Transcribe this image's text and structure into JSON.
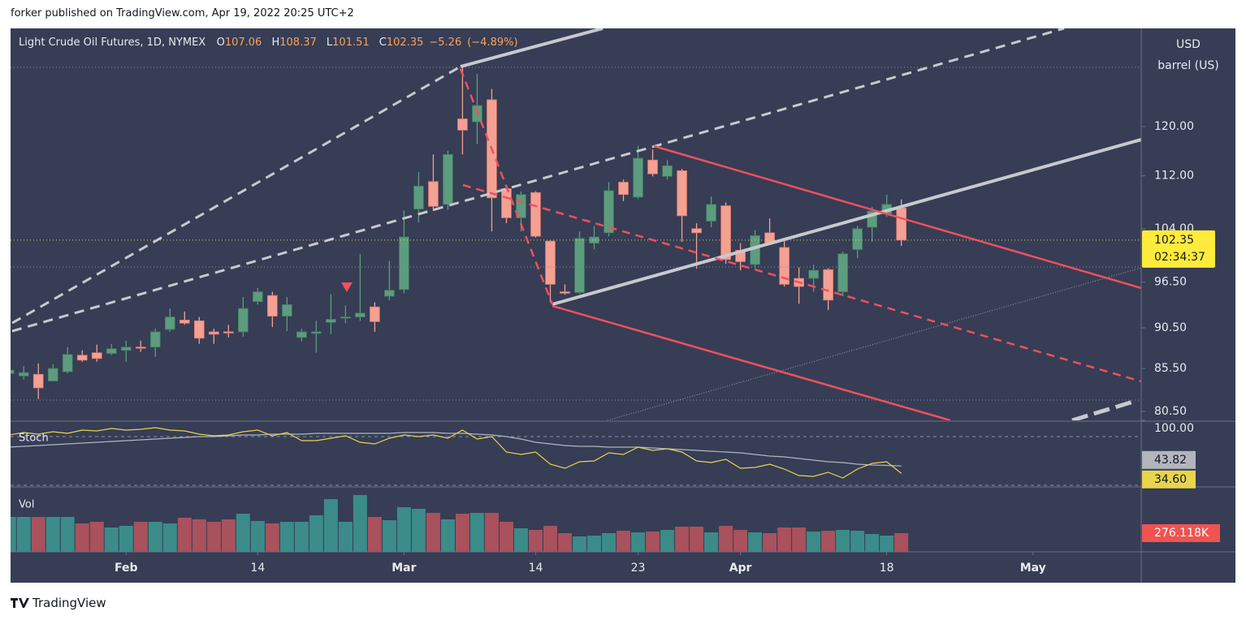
{
  "header": {
    "byline": "forker published on TradingView.com, Apr 19, 2022 20:25 UTC+2",
    "brand": "TradingView"
  },
  "chart_data": {
    "type": "candlestick",
    "title": "Light Crude Oil Futures, 1D, NYMEX",
    "legend_keys": [
      "O",
      "H",
      "L",
      "C"
    ],
    "change": {
      "value": -5.26,
      "label": "−5.26"
    },
    "change_pct": {
      "value": -4.89,
      "label": "(−4.89%)"
    },
    "currency": "USD",
    "unit": "barrel (US)",
    "countdown": "02:34:37",
    "log_scale": true,
    "up_color": "#5d9c7e",
    "down_color": "#f4a092",
    "open": [
      84.9,
      84.6,
      84.8,
      84.0,
      85.1,
      87.1,
      87.4,
      87.3,
      87.7,
      88.1,
      88.1,
      90.3,
      91.5,
      91.4,
      90.0,
      90.0,
      90.0,
      93.9,
      94.7,
      92.0,
      89.3,
      89.8,
      91.2,
      91.8,
      91.9,
      93.2,
      94.6,
      95.5,
      106.9,
      111.1,
      107.6,
      121.3,
      120.8,
      124.6,
      110.0,
      105.6,
      109.4,
      102.2,
      95.2,
      95.1,
      101.9,
      103.4,
      111.0,
      108.7,
      114.5,
      111.9,
      112.8,
      104.0,
      105.1,
      107.4,
      100.9,
      98.9,
      103.4,
      101.3,
      97.0,
      97.0,
      98.2,
      95.2,
      101.0,
      104.2,
      106.2,
      107.06
    ],
    "high": [
      85.6,
      85.8,
      86.1,
      86.0,
      88.1,
      87.7,
      88.4,
      88.5,
      88.9,
      88.9,
      90.4,
      93.0,
      92.6,
      91.9,
      90.4,
      90.9,
      94.5,
      95.7,
      95.2,
      94.5,
      90.4,
      91.4,
      94.9,
      93.4,
      100.4,
      93.8,
      99.4,
      106.7,
      112.6,
      115.4,
      116.0,
      130.4,
      129.2,
      126.5,
      110.5,
      109.6,
      109.6,
      102.4,
      96.2,
      103.6,
      104.4,
      111.0,
      111.4,
      116.8,
      116.2,
      114.5,
      113.1,
      104.8,
      108.8,
      107.9,
      101.9,
      103.8,
      105.5,
      102.6,
      98.5,
      98.9,
      98.4,
      100.7,
      104.4,
      107.2,
      109.1,
      108.37
    ],
    "low": [
      84.7,
      84.2,
      81.9,
      84.0,
      84.9,
      86.3,
      86.3,
      87.1,
      86.3,
      87.5,
      86.9,
      90.0,
      90.9,
      88.5,
      88.5,
      89.3,
      89.4,
      93.5,
      90.6,
      90.1,
      88.8,
      87.4,
      89.7,
      91.1,
      91.4,
      90.0,
      94.1,
      95.0,
      104.9,
      106.6,
      106.8,
      115.4,
      117.1,
      103.6,
      104.8,
      103.6,
      102.7,
      93.8,
      94.8,
      94.9,
      101.0,
      102.9,
      108.1,
      108.4,
      111.9,
      111.4,
      102.1,
      98.3,
      104.2,
      99.0,
      98.1,
      98.4,
      101.7,
      95.9,
      93.6,
      95.2,
      92.8,
      94.6,
      99.8,
      102.1,
      105.7,
      101.51
    ],
    "close": [
      85.3,
      85.0,
      83.2,
      85.5,
      87.2,
      86.5,
      86.7,
      87.9,
      88.1,
      88.0,
      90.0,
      91.9,
      91.1,
      89.2,
      89.7,
      89.9,
      93.0,
      95.2,
      92.0,
      93.5,
      90.0,
      90.0,
      91.6,
      91.9,
      92.4,
      91.3,
      95.4,
      102.8,
      110.4,
      107.3,
      115.4,
      119.4,
      123.6,
      108.6,
      105.6,
      109.1,
      102.9,
      96.2,
      95.0,
      102.6,
      102.8,
      109.7,
      109.1,
      114.8,
      112.3,
      113.6,
      105.9,
      103.4,
      107.6,
      99.6,
      99.3,
      103.0,
      101.9,
      96.2,
      95.9,
      98.1,
      94.1,
      100.4,
      104.0,
      106.6,
      107.61,
      102.35
    ],
    "xlim": [
      0.1,
      77.4
    ],
    "xticks": [
      {
        "value": 8,
        "label": "Feb"
      },
      {
        "value": 17,
        "label": "14"
      },
      {
        "value": 27,
        "label": "Mar"
      },
      {
        "value": 36,
        "label": "14"
      },
      {
        "value": 43,
        "label": "23"
      },
      {
        "value": 50,
        "label": "Apr"
      },
      {
        "value": 60,
        "label": "18"
      },
      {
        "value": 70,
        "label": "May"
      }
    ],
    "ylim": [
      79.5,
      137.7
    ],
    "yticks": [
      {
        "value": 80.5,
        "label": "80.50"
      },
      {
        "value": 85.5,
        "label": "85.50"
      },
      {
        "value": 90.5,
        "label": "90.50"
      },
      {
        "value": 96.5,
        "label": "96.50"
      },
      {
        "value": 104,
        "label": "104.00"
      },
      {
        "value": 112,
        "label": "112.00"
      },
      {
        "value": 120,
        "label": "120.00"
      }
    ],
    "stoch": {
      "name": "Stoch",
      "ylim": [
        18,
        99
      ],
      "yticks": [
        {
          "value": 100,
          "label": "100.00"
        }
      ],
      "bands": [
        80,
        20
      ],
      "series": [
        {
          "color": "#e8d44d",
          "values": [
            82,
            85,
            83,
            86,
            84,
            88,
            87,
            90,
            88,
            89,
            91,
            88,
            87,
            83,
            81,
            82,
            86,
            88,
            81,
            85,
            75,
            75,
            78,
            81,
            73,
            71,
            78,
            82,
            80,
            82,
            78,
            88,
            77,
            80,
            61,
            58,
            61,
            46,
            41,
            49,
            50,
            60,
            58,
            67,
            63,
            65,
            61,
            50,
            48,
            52,
            41,
            42,
            46,
            40,
            32,
            31,
            36,
            29,
            40,
            47,
            49,
            34.6
          ],
          "value_labels": [
            null,
            null,
            null,
            null,
            null,
            null,
            null,
            null,
            null,
            null,
            null,
            null,
            null,
            null,
            null,
            null,
            null,
            null,
            null,
            null,
            null,
            null,
            null,
            null,
            null,
            null,
            null,
            null,
            null,
            null,
            null,
            null,
            null,
            null,
            null,
            null,
            null,
            null,
            null,
            null,
            null,
            null,
            null,
            null,
            null,
            null,
            null,
            null,
            null,
            null,
            null,
            null,
            null,
            null,
            null,
            null,
            null,
            null,
            null,
            null,
            null,
            "34.60"
          ]
        },
        {
          "color": "#b2b5be",
          "values": [
            67,
            68,
            69,
            70,
            71,
            72,
            73,
            74,
            75,
            76,
            77,
            78,
            79,
            80,
            80,
            81,
            82,
            82,
            83,
            83,
            83,
            84,
            84,
            84,
            84,
            84,
            84,
            85,
            85,
            85,
            84,
            84,
            83,
            82,
            80,
            77,
            73,
            71,
            69,
            68,
            68,
            67,
            67,
            67,
            66,
            65,
            64,
            63,
            62,
            61,
            60,
            58,
            56,
            55,
            53,
            51,
            49,
            48,
            46,
            45,
            44.5,
            43.82
          ]
        }
      ]
    },
    "volume": {
      "name": "Vol",
      "ylim": [
        0,
        960000
      ],
      "up_color": "#3b8b89",
      "down_color": "#a9515d",
      "values": [
        516000,
        516000,
        516000,
        516000,
        516000,
        420000,
        444000,
        360000,
        384000,
        444000,
        444000,
        420000,
        504000,
        480000,
        444000,
        480000,
        564000,
        456000,
        420000,
        444000,
        444000,
        540000,
        780000,
        444000,
        840000,
        516000,
        468000,
        660000,
        636000,
        576000,
        480000,
        564000,
        576000,
        576000,
        444000,
        348000,
        324000,
        384000,
        276000,
        228000,
        240000,
        276000,
        312000,
        288000,
        300000,
        324000,
        372000,
        372000,
        288000,
        384000,
        324000,
        288000,
        276000,
        360000,
        360000,
        300000,
        312000,
        324000,
        312000,
        264000,
        240000,
        276118
      ],
      "value_labels": [
        null,
        null,
        null,
        null,
        null,
        null,
        null,
        null,
        null,
        null,
        null,
        null,
        null,
        null,
        null,
        null,
        null,
        null,
        null,
        null,
        null,
        null,
        null,
        null,
        null,
        null,
        null,
        null,
        null,
        null,
        null,
        null,
        null,
        null,
        null,
        null,
        null,
        null,
        null,
        null,
        null,
        null,
        null,
        null,
        null,
        null,
        null,
        null,
        null,
        null,
        null,
        null,
        null,
        null,
        null,
        null,
        null,
        null,
        null,
        null,
        null,
        "276.118K"
      ]
    }
  }
}
